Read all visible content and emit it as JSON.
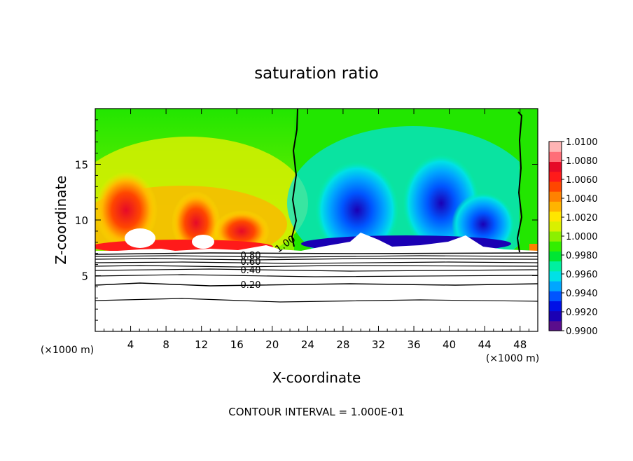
{
  "chart_data": {
    "type": "heatmap",
    "title": "saturation ratio",
    "xlabel": "X-coordinate",
    "ylabel": "Z-coordinate",
    "x_unit_left": "(×1000 m)",
    "x_unit_right": "(×1000 m)",
    "footer": "CONTOUR INTERVAL = 1.000E-01",
    "xlim": [
      0,
      50
    ],
    "ylim": [
      0,
      20
    ],
    "x_ticks": [
      "4",
      "8",
      "12",
      "16",
      "20",
      "24",
      "28",
      "32",
      "36",
      "40",
      "44",
      "48"
    ],
    "y_ticks": [
      "5",
      "10",
      "15"
    ],
    "colorbar": {
      "min": 0.99,
      "max": 1.01,
      "labels": [
        "1.0100",
        "1.0080",
        "1.0060",
        "1.0040",
        "1.0020",
        "1.0000",
        "0.9980",
        "0.9960",
        "0.9940",
        "0.9920",
        "0.9900"
      ],
      "colors": [
        "#5a0d8c",
        "#1a00b4",
        "#0010e6",
        "#0055ff",
        "#00a6ff",
        "#00e1e6",
        "#00f0a0",
        "#00e633",
        "#33ee00",
        "#8cf000",
        "#d9f000",
        "#ffe600",
        "#ffb400",
        "#ff8200",
        "#ff4600",
        "#ff1a1a",
        "#e60a28",
        "#ff6e78",
        "#ffb4b4"
      ]
    },
    "contour_labels": [
      "1.00",
      "0.80",
      "0.60",
      "0.40",
      "0.20"
    ]
  }
}
